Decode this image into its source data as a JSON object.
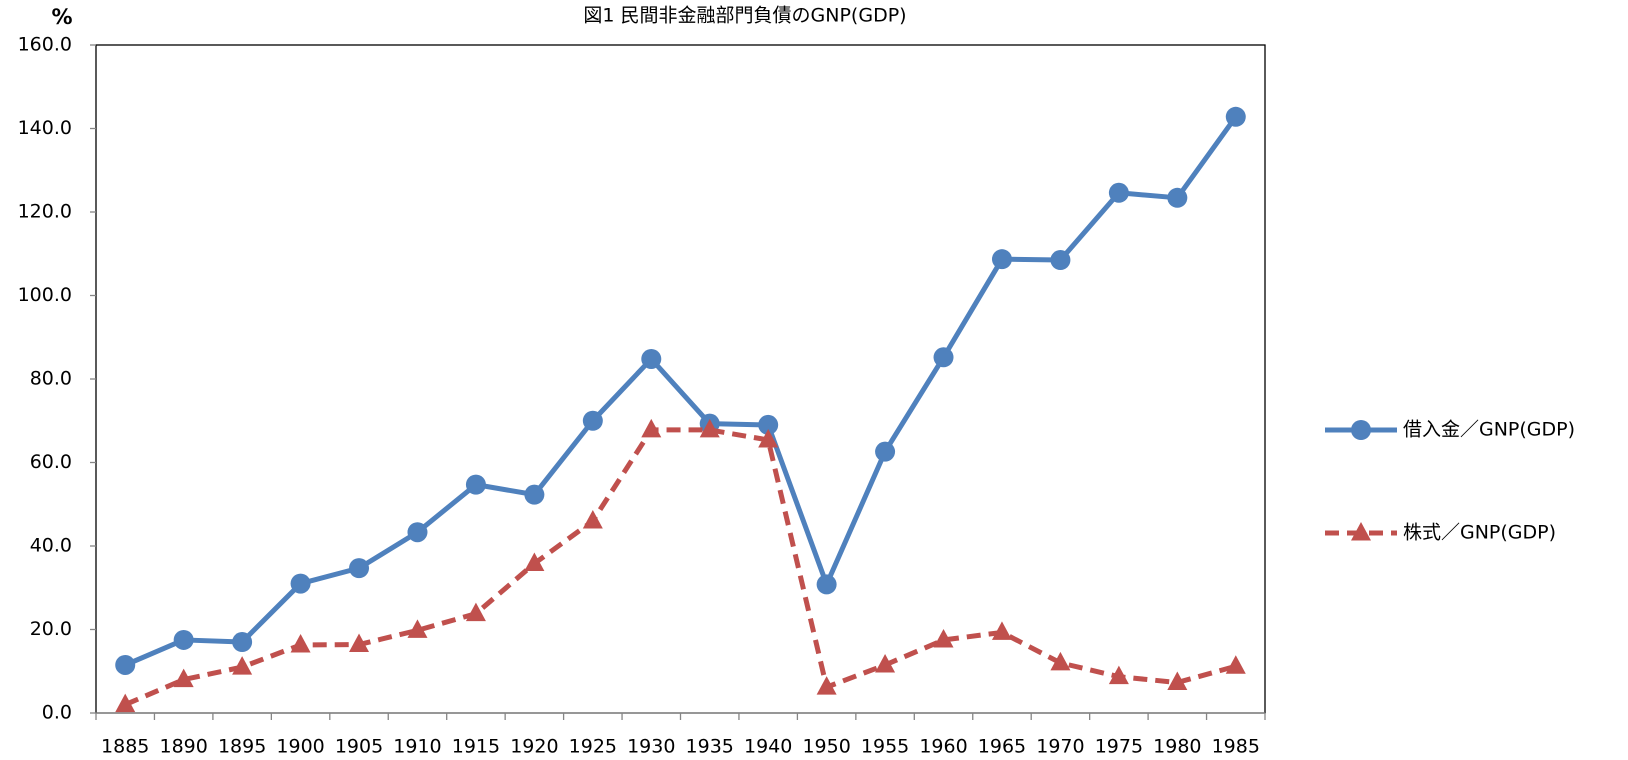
{
  "chart_data": {
    "type": "line",
    "title": "図1 民間非金融部門負債のGNP(GDP)",
    "y_label": "%",
    "categories": [
      "1885",
      "1890",
      "1895",
      "1900",
      "1905",
      "1910",
      "1915",
      "1920",
      "1925",
      "1930",
      "1935",
      "1940",
      "1950",
      "1955",
      "1960",
      "1965",
      "1970",
      "1975",
      "1980",
      "1985"
    ],
    "series": [
      {
        "name": "借入金／GNP(GDP)",
        "color": "#4f81bd",
        "marker": "circle",
        "dashed": false,
        "values": [
          11.5,
          17.5,
          17,
          31,
          34.7,
          43.3,
          54.7,
          52.3,
          70,
          84.8,
          69.3,
          69,
          30.8,
          62.6,
          85.2,
          108.7,
          108.5,
          124.6,
          123.4,
          142.8
        ]
      },
      {
        "name": "株式／GNP(GDP)",
        "color": "#c0504d",
        "marker": "triangle",
        "dashed": true,
        "values": [
          2,
          8,
          11,
          16.3,
          16.4,
          19.8,
          23.8,
          35.8,
          46,
          67.8,
          67.8,
          65.4,
          6.2,
          11.5,
          17.5,
          19.3,
          12,
          8.7,
          7.3,
          11.2
        ]
      }
    ],
    "ylim": [
      0,
      160
    ],
    "yticks": [
      {
        "value": 0,
        "label": "0.0"
      },
      {
        "value": 20,
        "label": "20.0"
      },
      {
        "value": 40,
        "label": "40.0"
      },
      {
        "value": 60,
        "label": "60.0"
      },
      {
        "value": 80,
        "label": "80.0"
      },
      {
        "value": 100,
        "label": "100.0"
      },
      {
        "value": 120,
        "label": "120.0"
      },
      {
        "value": 140,
        "label": "140.0"
      },
      {
        "value": 160,
        "label": "160.0"
      }
    ],
    "grid": false,
    "legend": "right"
  }
}
